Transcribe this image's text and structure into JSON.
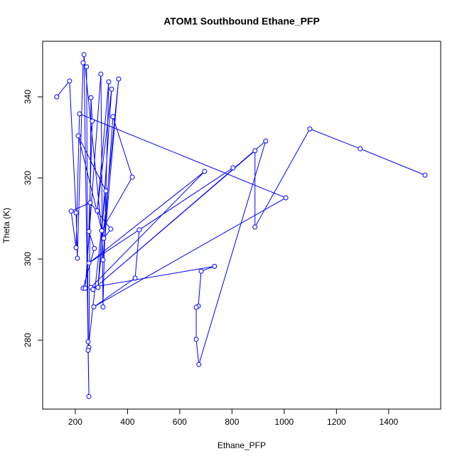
{
  "chart_data": {
    "type": "line",
    "title": "ATOM1 Southbound Ethane_PFP",
    "x_label": "Ethane_PFP",
    "y_label": "Theta (K)",
    "x": [
      129,
      178,
      203,
      208,
      230,
      243,
      249,
      252,
      260,
      265,
      252,
      273,
      230,
      238,
      298,
      306,
      328,
      284,
      339,
      287,
      366,
      306,
      344,
      418,
      301,
      233,
      252,
      249,
      317,
      211,
      309,
      336,
      257,
      184,
      203,
      216,
      1006,
      271,
      429,
      445,
      804,
      252,
      695,
      260,
      733,
      682,
      671,
      663,
      663,
      673,
      929,
      268,
      888,
      888,
      1098,
      1291,
      1539
    ],
    "series": [
      {
        "color": "#0000ff",
        "values": [
          340,
          343.9,
          311.4,
          300.2,
          348.4,
          347.4,
          279.6,
          278.2,
          339.8,
          334.0,
          306.8,
          302.6,
          292.8,
          292.8,
          345.6,
          288.2,
          343.7,
          311.9,
          341.9,
          293.0,
          344.4,
          299.8,
          335.1,
          320.2,
          307.0,
          350.4,
          266.1,
          277.5,
          316.8,
          330.4,
          305.1,
          307.4,
          313.9,
          311.8,
          302.8,
          335.8,
          315.1,
          288.2,
          295.3,
          307.2,
          322.5,
          299,
          321.6,
          293,
          298.2,
          297.0,
          288.4,
          288.1,
          280.2,
          274.0,
          329.1,
          292.5,
          326.7,
          307.9,
          332.1,
          327.2,
          320.7
        ]
      }
    ],
    "xlim": [
      75,
      1599
    ],
    "ylim": [
      263,
      353.7
    ],
    "xticks": [
      200,
      400,
      600,
      800,
      1000,
      1200,
      1400
    ],
    "yticks": [
      280,
      300,
      320,
      340
    ]
  }
}
